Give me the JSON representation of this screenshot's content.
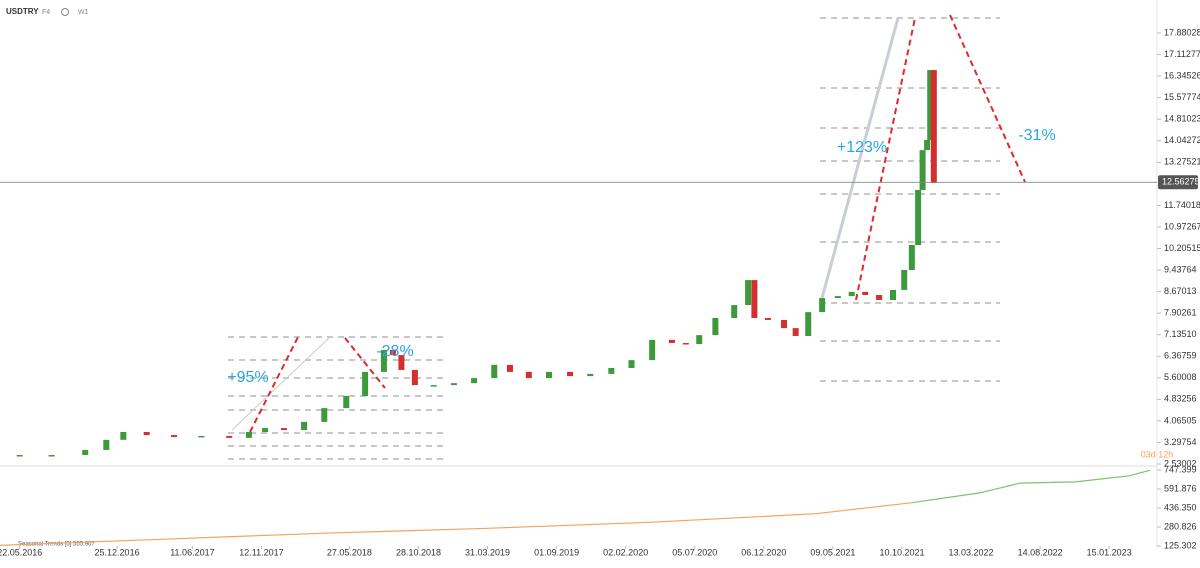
{
  "chart_data": [
    {
      "type": "candlestick",
      "symbol": "USDTRY",
      "contract": "F4",
      "timeframe": "W1",
      "x": [
        "22.05.2016",
        "01.08.2016",
        "15.10.2016",
        "01.12.2016",
        "08.01.2017",
        "01.03.2017",
        "01.05.2017",
        "01.07.2017",
        "01.09.2017",
        "15.10.2017",
        "20.11.2017",
        "01.01.2018",
        "15.02.2018",
        "01.04.2018",
        "20.05.2018",
        "01.07.2018",
        "12.08.2018",
        "01.09.2018",
        "20.09.2018",
        "20.10.2018",
        "01.12.2018",
        "15.01.2019",
        "01.03.2019",
        "15.04.2019",
        "20.05.2019",
        "01.07.2019",
        "15.08.2019",
        "01.10.2019",
        "15.11.2019",
        "01.01.2020",
        "15.02.2020",
        "01.04.2020",
        "15.05.2020",
        "15.06.2020",
        "15.07.2020",
        "20.08.2020",
        "01.10.2020",
        "01.11.2020",
        "15.11.2020",
        "15.12.2020",
        "20.01.2021",
        "15.02.2021",
        "15.03.2021",
        "15.04.2021",
        "20.05.2021",
        "20.06.2021",
        "20.07.2021",
        "20.08.2021",
        "20.09.2021",
        "15.10.2021",
        "01.11.2021",
        "15.11.2021",
        "25.11.2021",
        "05.12.2021",
        "12.12.2021",
        "20.12.2021"
      ],
      "values": [
        2.85,
        2.85,
        3.03,
        3.39,
        3.67,
        3.56,
        3.49,
        3.53,
        3.46,
        3.67,
        3.81,
        3.74,
        4.03,
        4.52,
        4.95,
        5.81,
        6.59,
        6.41,
        5.88,
        5.34,
        5.34,
        5.41,
        5.59,
        6.06,
        5.81,
        5.59,
        5.81,
        5.66,
        5.74,
        5.95,
        6.23,
        6.95,
        6.84,
        6.8,
        7.12,
        7.73,
        8.19,
        9.08,
        7.73,
        7.66,
        7.37,
        7.09,
        7.94,
        8.44,
        8.51,
        8.66,
        8.55,
        8.37,
        8.73,
        9.44,
        10.33,
        12.29,
        13.71,
        14.07,
        16.56,
        12.54
      ],
      "colors": {
        "up": "#3c9a3c",
        "down": "#d32f2f"
      },
      "last_price": 12.56275,
      "annotations": [
        "+95%",
        "-28%",
        "+123%",
        "-31%"
      ],
      "xlim": [
        "08.04.2016",
        "16.04.2023"
      ],
      "xticks": [
        "22.05.2016",
        "25.12.2016",
        "11.06.2017",
        "12.11.2017",
        "27.05.2018",
        "28.10.2018",
        "31.03.2019",
        "01.09.2019",
        "02.02.2020",
        "05.07.2020",
        "06.12.2020",
        "09.05.2021",
        "10.10.2021",
        "13.03.2022",
        "14.08.2022",
        "15.01.2023"
      ],
      "ylim": [
        2.4944,
        19.0556
      ],
      "yticks": [
        17.88028,
        17.11277,
        16.34526,
        15.57774,
        14.81023,
        14.04272,
        13.27521,
        11.74018,
        10.97267,
        10.20515,
        9.43764,
        8.67013,
        7.90261,
        {
          "value": 7.1351,
          "label": "7.13510"
        },
        6.36759,
        5.60008,
        4.83256,
        4.06505,
        3.29754,
        2.53002
      ]
    },
    {
      "type": "line",
      "title": "Seasonal Trends [5] 555.907",
      "annotation": "03d 12h",
      "series": [
        {
          "color": "#f5a25d",
          "x": [
            "08.04.2016",
            "01.04.2017",
            "01.04.2018",
            "01.04.2019",
            "01.04.2020",
            "01.04.2021",
            "01.11.2021"
          ],
          "values": [
            130,
            180,
            230,
            270,
            320,
            390,
            480
          ]
        },
        {
          "color": "#7cc36a",
          "x": [
            "01.11.2021",
            "01.04.2022",
            "01.07.2022",
            "01.11.2022",
            "01.03.2023",
            "16.04.2023"
          ],
          "values": [
            480,
            560,
            640,
            650,
            700,
            745
          ]
        }
      ],
      "ylim": [
        125.302,
        763.7
      ],
      "yticks": [
        747.399,
        591.876,
        {
          "value": 436.35,
          "label": "436.350"
        },
        280.826,
        125.302
      ]
    }
  ]
}
